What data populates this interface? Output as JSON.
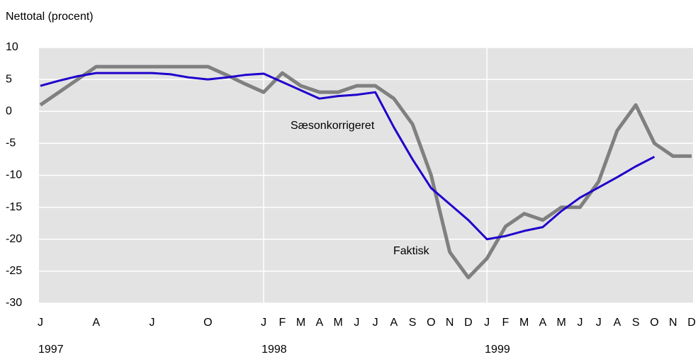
{
  "chart_data": {
    "type": "line",
    "y_axis_label": "Nettotal (procent)",
    "categories": [
      "J",
      null,
      null,
      "A",
      null,
      null,
      "J",
      null,
      null,
      "O",
      null,
      null,
      "J",
      "F",
      "M",
      "A",
      "M",
      "J",
      "J",
      "A",
      "S",
      "O",
      "N",
      "D",
      "J",
      "F",
      "M",
      "A",
      "M",
      "J",
      "J",
      "A",
      "S",
      "O",
      "N",
      "D"
    ],
    "years": [
      {
        "index": 0,
        "label": "1997"
      },
      {
        "index": 12,
        "label": "1998"
      },
      {
        "index": 24,
        "label": "1999"
      }
    ],
    "series": [
      {
        "name": "Faktisk",
        "color": "#808080",
        "values": [
          1,
          3,
          5,
          7,
          7,
          7,
          7,
          7,
          7,
          7,
          5.7,
          4.3,
          3,
          6,
          4,
          3,
          3,
          4,
          4,
          2,
          -2,
          -10,
          -22,
          -26,
          -23,
          -18,
          -16,
          -17,
          -15,
          -15,
          -11,
          -3,
          1,
          -5,
          -7,
          -7
        ]
      },
      {
        "name": "Sæsonkorrigeret",
        "color": "#1f00cc",
        "values": [
          4,
          4.8,
          5.5,
          6,
          6,
          6,
          6,
          5.8,
          5.3,
          5,
          5.3,
          5.7,
          5.9,
          4.6,
          3.3,
          2,
          2.4,
          2.6,
          3,
          -2.5,
          -7.5,
          -12,
          -14.5,
          -17,
          -20,
          -19.5,
          -18.7,
          -18.1,
          -15.6,
          -13.5,
          -11.9,
          -10.3,
          -8.6,
          -7.1,
          null,
          null
        ]
      }
    ],
    "ylim": [
      -30,
      10
    ],
    "yticks": [
      10,
      5,
      0,
      -5,
      -10,
      -15,
      -20,
      -25,
      -30
    ],
    "year_gridlines": [
      12,
      24
    ],
    "grid": true
  }
}
